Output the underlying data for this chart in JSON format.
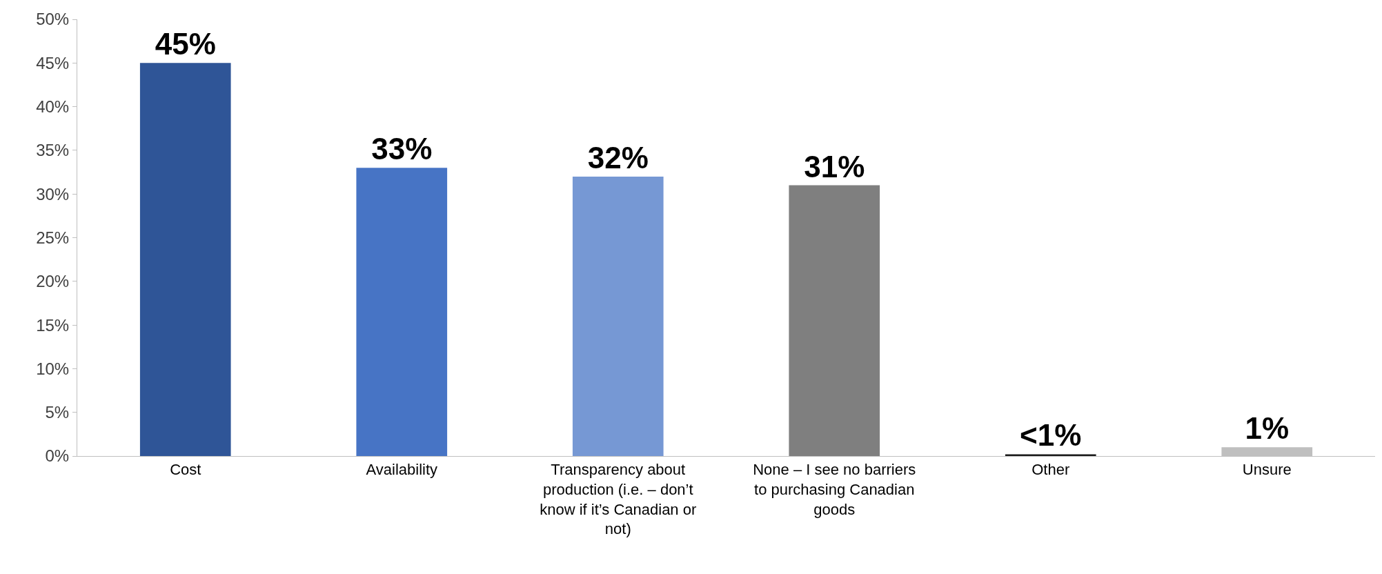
{
  "chart_data": {
    "type": "bar",
    "categories": [
      "Cost",
      "Availability",
      "Transparency about production (i.e. – don’t know if it’s Canadian or not)",
      "None – I see no barriers to purchasing Canadian goods",
      "Other",
      "Unsure"
    ],
    "values": [
      45,
      33,
      32,
      31,
      0.2,
      1
    ],
    "colors": [
      "#2f5597",
      "#4774c5",
      "#7698d4",
      "#7f7f7f",
      "#1a1a1a",
      "#bfbfbf"
    ],
    "value_labels": [
      "45%",
      "33%",
      "32%",
      "31%",
      "<1%",
      "1%"
    ],
    "ylim": [
      0,
      50
    ],
    "yticks": [
      {
        "value": 0,
        "label": "0%"
      },
      {
        "value": 5,
        "label": "5%"
      },
      {
        "value": 10,
        "label": "10%"
      },
      {
        "value": 15,
        "label": "15%"
      },
      {
        "value": 20,
        "label": "20%"
      },
      {
        "value": 25,
        "label": "25%"
      },
      {
        "value": 30,
        "label": "30%"
      },
      {
        "value": 35,
        "label": "35%"
      },
      {
        "value": 40,
        "label": "40%"
      },
      {
        "value": 45,
        "label": "45%"
      },
      {
        "value": 50,
        "label": "50%"
      }
    ],
    "grid": false
  }
}
